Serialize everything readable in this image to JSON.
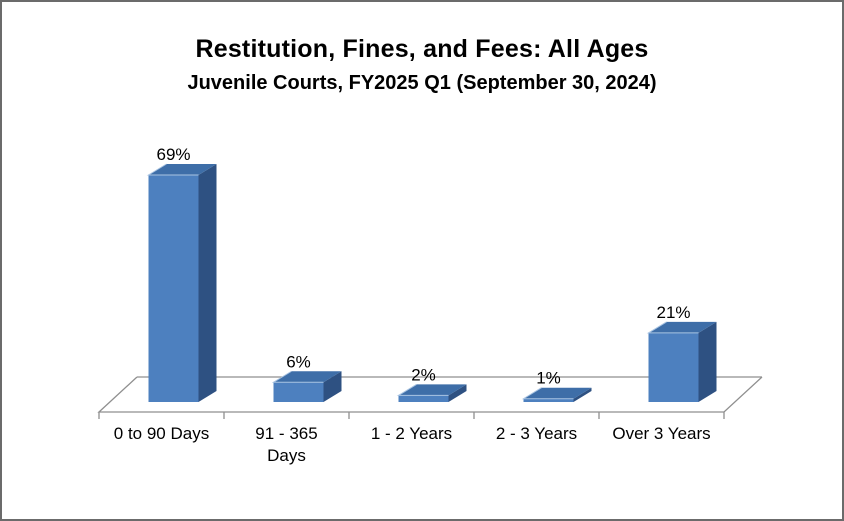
{
  "window": {
    "background": "#ffffff",
    "border_color": "#6b6b6b"
  },
  "chart_data": {
    "type": "bar",
    "style": "3d-column",
    "title": "Restitution, Fines, and Fees: All Ages",
    "subtitle": "Juvenile Courts, FY2025 Q1 (September 30, 2024)",
    "categories": [
      "0 to 90 Days",
      "91 - 365\nDays",
      "1 - 2 Years",
      "2 - 3 Years",
      "Over 3 Years"
    ],
    "values": [
      69,
      6,
      2,
      1,
      21
    ],
    "value_labels": [
      "69%",
      "6%",
      "2%",
      "1%",
      "21%"
    ],
    "unit": "%",
    "value_axis_visible": false,
    "grid": false,
    "legend": false,
    "colors": {
      "bar_front": "#4d80bf",
      "bar_side": "#2e5182",
      "bar_top": "#3e6ea8",
      "bar_highlight": "#a9c4e2",
      "axis_line": "#8f8f8f",
      "text": "#000000"
    }
  }
}
